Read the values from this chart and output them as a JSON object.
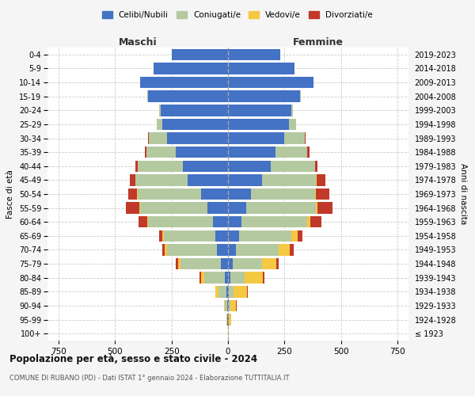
{
  "age_groups": [
    "100+",
    "95-99",
    "90-94",
    "85-89",
    "80-84",
    "75-79",
    "70-74",
    "65-69",
    "60-64",
    "55-59",
    "50-54",
    "45-49",
    "40-44",
    "35-39",
    "30-34",
    "25-29",
    "20-24",
    "15-19",
    "10-14",
    "5-9",
    "0-4"
  ],
  "birth_years": [
    "≤ 1923",
    "1924-1928",
    "1929-1933",
    "1934-1938",
    "1939-1943",
    "1944-1948",
    "1949-1953",
    "1954-1958",
    "1959-1963",
    "1964-1968",
    "1969-1973",
    "1974-1978",
    "1979-1983",
    "1984-1988",
    "1989-1993",
    "1994-1998",
    "1999-2003",
    "2004-2008",
    "2009-2013",
    "2014-2018",
    "2019-2023"
  ],
  "males": {
    "celibi": [
      0,
      2,
      3,
      8,
      15,
      30,
      50,
      55,
      65,
      90,
      120,
      180,
      200,
      230,
      270,
      290,
      300,
      355,
      390,
      330,
      250
    ],
    "coniugati": [
      0,
      3,
      10,
      35,
      90,
      180,
      220,
      230,
      290,
      300,
      280,
      230,
      200,
      130,
      80,
      25,
      5,
      2,
      0,
      0,
      0
    ],
    "vedovi": [
      0,
      2,
      5,
      12,
      15,
      12,
      10,
      5,
      3,
      2,
      2,
      1,
      1,
      0,
      0,
      0,
      0,
      0,
      0,
      0,
      0
    ],
    "divorziati": [
      0,
      0,
      0,
      2,
      8,
      8,
      10,
      15,
      40,
      60,
      40,
      25,
      10,
      10,
      5,
      2,
      0,
      0,
      0,
      0,
      0
    ]
  },
  "females": {
    "nubili": [
      0,
      2,
      3,
      5,
      10,
      20,
      35,
      50,
      60,
      80,
      100,
      150,
      190,
      210,
      250,
      270,
      280,
      320,
      380,
      295,
      230
    ],
    "coniugate": [
      0,
      3,
      8,
      20,
      65,
      130,
      190,
      230,
      290,
      310,
      285,
      240,
      195,
      140,
      90,
      30,
      8,
      2,
      0,
      0,
      0
    ],
    "vedove": [
      2,
      10,
      25,
      60,
      80,
      65,
      50,
      30,
      15,
      8,
      5,
      3,
      2,
      1,
      0,
      0,
      0,
      0,
      0,
      0,
      0
    ],
    "divorziate": [
      0,
      0,
      1,
      3,
      8,
      10,
      15,
      20,
      50,
      65,
      60,
      40,
      10,
      10,
      5,
      0,
      0,
      0,
      0,
      0,
      0
    ]
  },
  "colors": {
    "celibi": "#4472c4",
    "coniugati": "#b5c9a0",
    "vedovi": "#f5c842",
    "divorziati": "#c0392b"
  },
  "xlim": 800,
  "title": "Popolazione per età, sesso e stato civile - 2024",
  "subtitle": "COMUNE DI RUBANO (PD) - Dati ISTAT 1° gennaio 2024 - Elaborazione TUTTITALIA.IT",
  "xlabel_left": "Maschi",
  "xlabel_right": "Femmine",
  "ylabel_left": "Fasce di età",
  "ylabel_right": "Anni di nascita",
  "bg_color": "#f5f5f5",
  "plot_bg": "#ffffff",
  "legend_labels": [
    "Celibi/Nubili",
    "Coniugati/e",
    "Vedovi/e",
    "Divorziati/e"
  ]
}
